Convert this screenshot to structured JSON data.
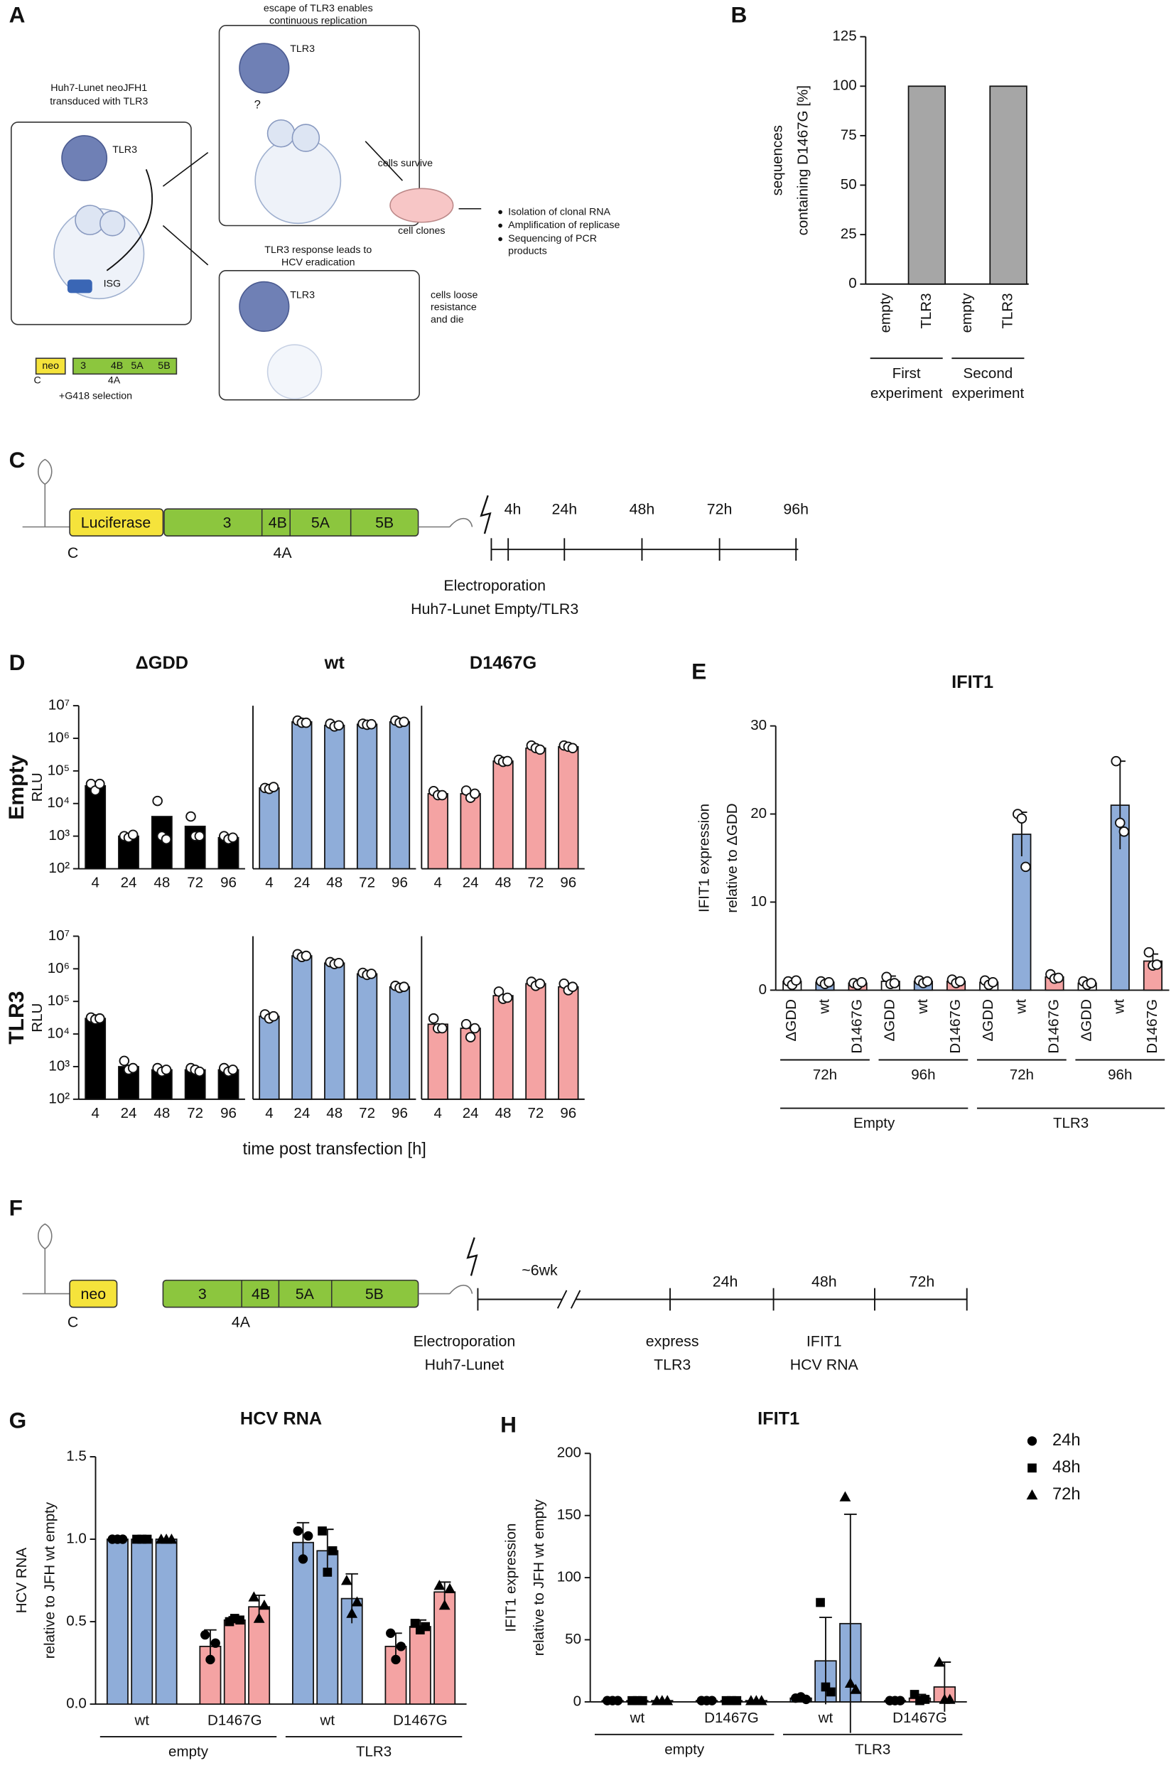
{
  "panel_labels": [
    "A",
    "B",
    "C",
    "D",
    "E",
    "F",
    "G",
    "H"
  ],
  "panel_a": {
    "escape_label": [
      "escape of TLR3 enables",
      "continuous replication"
    ],
    "cell_line_label": [
      "Huh7-Lunet neoJFH1",
      "transduced with TLR3"
    ],
    "tlr3_labels": [
      "TLR3",
      "TLR3",
      "TLR3"
    ],
    "question": "?",
    "isg": "ISG",
    "eradication_label": [
      "TLR3 response leads to",
      "HCV eradication"
    ],
    "survive_label": "cells survive",
    "die_label": [
      "cells loose",
      "resistance",
      "and die"
    ],
    "clones_label": "cell clones",
    "steps": [
      [
        "Isolation of clonal RNA"
      ],
      [
        "Amplification of replicase"
      ],
      [
        "Sequencing of PCR",
        "products"
      ]
    ],
    "replicon": [
      "neo",
      "3",
      "4B",
      "5A",
      "5B"
    ],
    "replicon_below": [
      "C",
      "4A"
    ],
    "selection": "+G418 selection"
  },
  "panel_c": {
    "replicon": [
      "Luciferase",
      "3",
      "4B",
      "5A",
      "5B"
    ],
    "replicon_below": [
      "C",
      "4A"
    ],
    "timepoints": [
      "4h",
      "24h",
      "48h",
      "72h",
      "96h"
    ],
    "caption": [
      "Electroporation",
      "Huh7-Lunet Empty/TLR3"
    ]
  },
  "panel_f": {
    "replicon": [
      "neo",
      "3",
      "4B",
      "5A",
      "5B"
    ],
    "replicon_below": [
      "C",
      "4A"
    ],
    "gap_label": "~6wk",
    "timepoints": [
      "24h",
      "48h",
      "72h"
    ],
    "captions": [
      [
        "Electroporation",
        "Huh7-Lunet"
      ],
      [
        "express",
        "TLR3"
      ],
      [
        "IFIT1",
        "HCV RNA"
      ]
    ]
  },
  "chart_data": [
    {
      "type": "bar",
      "ylabel": [
        "sequences",
        "containing D1467G [%]"
      ],
      "categories": [
        "empty",
        "TLR3",
        "empty",
        "TLR3"
      ],
      "values": [
        0,
        100,
        0,
        100
      ],
      "color": "#a6a6a6",
      "groups": [
        [
          "First",
          "experiment"
        ],
        [
          "Second",
          "experiment"
        ]
      ],
      "ylim": [
        0,
        125
      ],
      "yticks": [
        0,
        25,
        50,
        75,
        100,
        125
      ]
    },
    {
      "type": "bar",
      "log": true,
      "title": "ΔGDD",
      "row_label": "Empty",
      "ylabel": "RLU",
      "categories": [
        "4",
        "24",
        "48",
        "72",
        "96"
      ],
      "color": "#000000",
      "values": [
        35000,
        1000,
        4000,
        2000,
        900
      ],
      "points": [
        [
          40000,
          25000,
          40000
        ],
        [
          1000,
          900,
          1100
        ],
        [
          12000,
          1000,
          800
        ],
        [
          4000,
          1000,
          1000
        ],
        [
          1000,
          800,
          900
        ]
      ],
      "ylim": [
        100,
        10000000
      ],
      "yticks": [
        {
          "value": 100,
          "label": "10²"
        },
        {
          "value": 1000,
          "label": "10³"
        },
        {
          "value": 10000,
          "label": "10⁴"
        },
        {
          "value": 100000,
          "label": "10⁵"
        },
        {
          "value": 1000000,
          "label": "10⁶"
        },
        {
          "value": 10000000,
          "label": "10⁷"
        }
      ]
    },
    {
      "type": "bar",
      "log": true,
      "title": "wt",
      "categories": [
        "4",
        "24",
        "48",
        "72",
        "96"
      ],
      "color": "#8fadd9",
      "values": [
        30000,
        3200000,
        2500000,
        2700000,
        3200000
      ],
      "points": [
        [
          30000,
          28000,
          32000
        ],
        [
          3500000,
          3000000,
          3000000
        ],
        [
          2800000,
          2300000,
          2500000
        ],
        [
          2800000,
          2600000,
          2700000
        ],
        [
          3500000,
          3000000,
          3200000
        ]
      ],
      "ylim": [
        100,
        10000000
      ]
    },
    {
      "type": "bar",
      "log": true,
      "title": "D1467G",
      "categories": [
        "4",
        "24",
        "48",
        "72",
        "96"
      ],
      "color": "#f4a3a3",
      "values": [
        20000,
        20000,
        200000,
        500000,
        550000
      ],
      "points": [
        [
          24000,
          18000,
          18000
        ],
        [
          25000,
          15000,
          20000
        ],
        [
          220000,
          190000,
          200000
        ],
        [
          600000,
          500000,
          450000
        ],
        [
          600000,
          550000,
          500000
        ]
      ],
      "ylim": [
        100,
        10000000
      ]
    },
    {
      "type": "bar",
      "log": true,
      "row_label": "TLR3",
      "ylabel": "RLU",
      "categories": [
        "4",
        "24",
        "48",
        "72",
        "96"
      ],
      "color": "#000000",
      "values": [
        30000,
        1000,
        800,
        800,
        800
      ],
      "points": [
        [
          32000,
          28000,
          30000
        ],
        [
          1500,
          800,
          900
        ],
        [
          900,
          700,
          800
        ],
        [
          900,
          800,
          700
        ],
        [
          900,
          700,
          800
        ]
      ],
      "ylim": [
        100,
        10000000
      ],
      "yticks": [
        {
          "value": 100,
          "label": "10²"
        },
        {
          "value": 1000,
          "label": "10³"
        },
        {
          "value": 10000,
          "label": "10⁴"
        },
        {
          "value": 100000,
          "label": "10⁵"
        },
        {
          "value": 1000000,
          "label": "10⁶"
        },
        {
          "value": 10000000,
          "label": "10⁷"
        }
      ]
    },
    {
      "type": "bar",
      "log": true,
      "xlabel": "time post transfection [h]",
      "categories": [
        "4",
        "24",
        "48",
        "72",
        "96"
      ],
      "color": "#8fadd9",
      "values": [
        35000,
        2500000,
        1500000,
        700000,
        280000
      ],
      "points": [
        [
          40000,
          30000,
          35000
        ],
        [
          2800000,
          2300000,
          2500000
        ],
        [
          1600000,
          1400000,
          1500000
        ],
        [
          750000,
          650000,
          700000
        ],
        [
          300000,
          260000,
          280000
        ]
      ],
      "ylim": [
        100,
        10000000
      ]
    },
    {
      "type": "bar",
      "log": true,
      "categories": [
        "4",
        "24",
        "48",
        "72",
        "96"
      ],
      "color": "#f4a3a3",
      "values": [
        20000,
        15000,
        150000,
        350000,
        280000
      ],
      "points": [
        [
          30000,
          15000,
          15000
        ],
        [
          20000,
          8000,
          15000
        ],
        [
          200000,
          120000,
          130000
        ],
        [
          400000,
          300000,
          350000
        ],
        [
          350000,
          220000,
          280000
        ]
      ],
      "ylim": [
        100,
        10000000
      ]
    },
    {
      "type": "bar",
      "title": "IFIT1",
      "ylabel": [
        "IFIT1 expression",
        "relative to ΔGDD"
      ],
      "categories": [
        "ΔGDD",
        "wt",
        "D1467G",
        "ΔGDD",
        "wt",
        "D1467G",
        "ΔGDD",
        "wt",
        "D1467G",
        "ΔGDD",
        "wt",
        "D1467G"
      ],
      "colors": [
        "#ffffff",
        "#8fadd9",
        "#f4a3a3",
        "#ffffff",
        "#8fadd9",
        "#f4a3a3",
        "#ffffff",
        "#8fadd9",
        "#f4a3a3",
        "#ffffff",
        "#8fadd9",
        "#f4a3a3"
      ],
      "values": [
        1,
        0.9,
        0.8,
        1,
        1,
        1,
        0.9,
        17.7,
        1.5,
        0.8,
        21,
        3.3
      ],
      "errors": [
        0.3,
        0.2,
        0.2,
        0.6,
        0.3,
        0.3,
        0.3,
        2.5,
        0.3,
        0.3,
        5,
        0.8
      ],
      "points": [
        [
          1,
          0.6,
          1.1
        ],
        [
          1,
          0.7,
          0.9
        ],
        [
          0.8,
          0.6,
          0.9
        ],
        [
          1.5,
          0.7,
          0.8
        ],
        [
          1.1,
          0.8,
          1
        ],
        [
          1.2,
          0.8,
          1
        ],
        [
          1.1,
          0.6,
          0.9
        ],
        [
          20,
          19.5,
          14
        ],
        [
          1.8,
          1.3,
          1.4
        ],
        [
          1,
          0.6,
          0.8
        ],
        [
          26,
          19,
          18
        ],
        [
          4.3,
          2.8,
          2.9
        ]
      ],
      "groups": [
        [
          "72h"
        ],
        [
          "96h"
        ],
        [
          "72h"
        ],
        [
          "96h"
        ]
      ],
      "supergroups": [
        "Empty",
        "TLR3"
      ],
      "ylim": [
        0,
        30
      ],
      "yticks": [
        0,
        10,
        20,
        30
      ]
    },
    {
      "type": "grouped_bar",
      "title": "HCV RNA",
      "ylabel": [
        "HCV RNA",
        "relative to JFH wt empty"
      ],
      "groups": [
        "wt",
        "D1467G",
        "wt",
        "D1467G"
      ],
      "supergroups": [
        "empty",
        "TLR3"
      ],
      "group_colors": [
        "#8fadd9",
        "#f4a3a3",
        "#8fadd9",
        "#f4a3a3"
      ],
      "legend": false,
      "series": [
        {
          "name": "24h",
          "marker": "circle",
          "values": [
            1,
            0.35,
            0.98,
            0.35
          ],
          "errors": [
            0,
            0.1,
            0.12,
            0.08
          ],
          "points": [
            [
              1,
              1,
              1
            ],
            [
              0.42,
              0.27,
              0.37
            ],
            [
              1.05,
              0.88,
              1.02
            ],
            [
              0.43,
              0.27,
              0.35
            ]
          ]
        },
        {
          "name": "48h",
          "marker": "square",
          "values": [
            1,
            0.51,
            0.93,
            0.47
          ],
          "errors": [
            0,
            0.02,
            0.13,
            0.04
          ],
          "points": [
            [
              1,
              1,
              1
            ],
            [
              0.5,
              0.52,
              0.51
            ],
            [
              1.05,
              0.8,
              0.93
            ],
            [
              0.49,
              0.45,
              0.47
            ]
          ]
        },
        {
          "name": "72h",
          "marker": "triangle",
          "values": [
            1,
            0.59,
            0.64,
            0.68
          ],
          "errors": [
            0,
            0.07,
            0.15,
            0.06
          ],
          "points": [
            [
              1,
              1,
              1
            ],
            [
              0.65,
              0.52,
              0.6
            ],
            [
              0.75,
              0.55,
              0.62
            ],
            [
              0.72,
              0.6,
              0.7
            ]
          ]
        }
      ],
      "ylim": [
        0,
        1.5
      ],
      "yticks": [
        {
          "value": 0,
          "label": "0.0"
        },
        0.5,
        {
          "value": 1,
          "label": "1.0"
        },
        1.5
      ]
    },
    {
      "type": "grouped_bar",
      "title": "IFIT1",
      "ylabel": [
        "IFIT1 expression",
        "relative to JFH wt empty"
      ],
      "groups": [
        "wt",
        "D1467G",
        "wt",
        "D1467G"
      ],
      "supergroups": [
        "empty",
        "TLR3"
      ],
      "group_colors": [
        "#8fadd9",
        "#f4a3a3",
        "#8fadd9",
        "#f4a3a3"
      ],
      "legend": true,
      "series": [
        {
          "name": "24h",
          "marker": "circle",
          "values": [
            1,
            1,
            3,
            1
          ],
          "errors": [
            0,
            0,
            1,
            0
          ],
          "points": [
            [
              1,
              1,
              1
            ],
            [
              1,
              1,
              1
            ],
            [
              3,
              4,
              2
            ],
            [
              1,
              1,
              1
            ]
          ]
        },
        {
          "name": "48h",
          "marker": "square",
          "values": [
            1,
            1,
            33,
            3
          ],
          "errors": [
            0,
            0,
            35,
            3
          ],
          "points": [
            [
              1,
              1,
              1
            ],
            [
              1,
              1,
              1
            ],
            [
              80,
              12,
              8
            ],
            [
              6,
              1,
              2
            ]
          ]
        },
        {
          "name": "72h",
          "marker": "triangle",
          "values": [
            1,
            1,
            63,
            12
          ],
          "errors": [
            0,
            0,
            88,
            20
          ],
          "points": [
            [
              1,
              1,
              1
            ],
            [
              1,
              1,
              1
            ],
            [
              165,
              15,
              10
            ],
            [
              32,
              2,
              2
            ]
          ]
        }
      ],
      "ylim": [
        0,
        200
      ],
      "yticks": [
        0,
        50,
        100,
        150,
        200
      ]
    }
  ]
}
